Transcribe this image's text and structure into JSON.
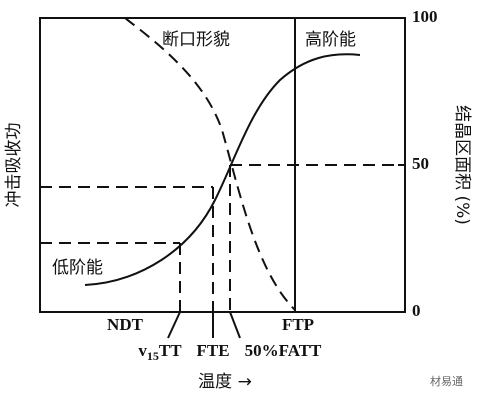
{
  "left_axis_label": "冲击吸收功",
  "right_axis_label": "结晶区面积 (%)",
  "right_ticks": [
    "100",
    "50",
    "0"
  ],
  "curve_labels": {
    "fracture": "断口形貌",
    "upper_shelf": "高阶能",
    "lower_shelf": "低阶能"
  },
  "temperature_marks": {
    "ndt": "NDT",
    "ftp": "FTP",
    "v15tt": {
      "base": "v",
      "sub": "15",
      "tail": "TT"
    },
    "fte": "FTE",
    "fatt": "50%FATT"
  },
  "x_axis_label": "温度 →",
  "watermark": "材易通"
}
